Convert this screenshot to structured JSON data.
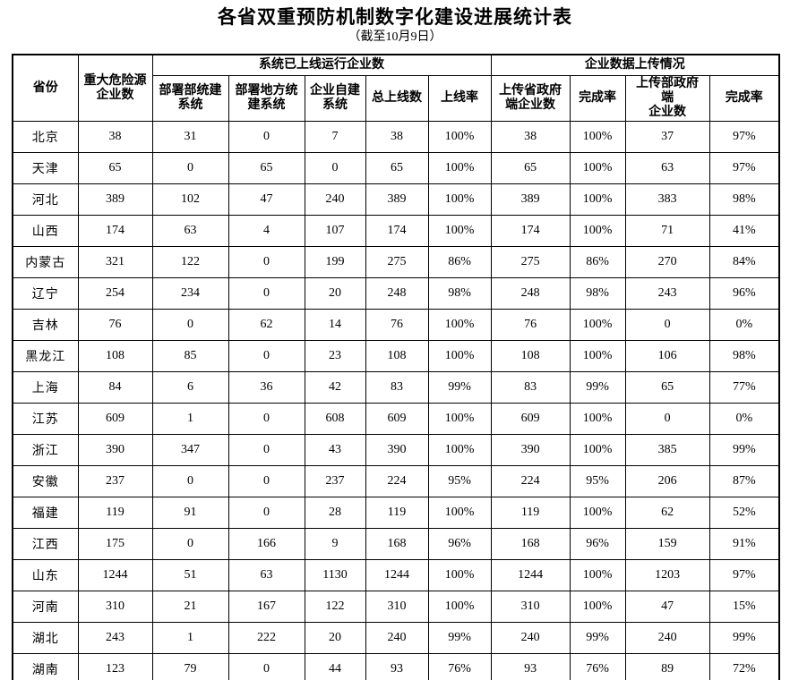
{
  "page": {
    "title": "各省双重预防机制数字化建设进展统计表",
    "subtitle": "（截至10月9日）"
  },
  "table": {
    "header": {
      "province": "省份",
      "major_hazard": "重大危险源\n企业数",
      "group_online": "系统已上线运行企业数",
      "group_upload": "企业数据上传情况",
      "sub": [
        "部署部统建\n系统",
        "部署地方统\n建系统",
        "企业自建\n系统",
        "总上线数",
        "上线率",
        "上传省政府\n端企业数",
        "完成率",
        "上传部政府端\n企业数",
        "完成率"
      ]
    },
    "rows": [
      {
        "province": "北京",
        "values": [
          "38",
          "31",
          "0",
          "7",
          "38",
          "100%",
          "38",
          "100%",
          "37",
          "97%"
        ]
      },
      {
        "province": "天津",
        "values": [
          "65",
          "0",
          "65",
          "0",
          "65",
          "100%",
          "65",
          "100%",
          "63",
          "97%"
        ]
      },
      {
        "province": "河北",
        "values": [
          "389",
          "102",
          "47",
          "240",
          "389",
          "100%",
          "389",
          "100%",
          "383",
          "98%"
        ]
      },
      {
        "province": "山西",
        "values": [
          "174",
          "63",
          "4",
          "107",
          "174",
          "100%",
          "174",
          "100%",
          "71",
          "41%"
        ]
      },
      {
        "province": "内蒙古",
        "values": [
          "321",
          "122",
          "0",
          "199",
          "275",
          "86%",
          "275",
          "86%",
          "270",
          "84%"
        ]
      },
      {
        "province": "辽宁",
        "values": [
          "254",
          "234",
          "0",
          "20",
          "248",
          "98%",
          "248",
          "98%",
          "243",
          "96%"
        ]
      },
      {
        "province": "吉林",
        "values": [
          "76",
          "0",
          "62",
          "14",
          "76",
          "100%",
          "76",
          "100%",
          "0",
          "0%"
        ]
      },
      {
        "province": "黑龙江",
        "values": [
          "108",
          "85",
          "0",
          "23",
          "108",
          "100%",
          "108",
          "100%",
          "106",
          "98%"
        ]
      },
      {
        "province": "上海",
        "values": [
          "84",
          "6",
          "36",
          "42",
          "83",
          "99%",
          "83",
          "99%",
          "65",
          "77%"
        ]
      },
      {
        "province": "江苏",
        "values": [
          "609",
          "1",
          "0",
          "608",
          "609",
          "100%",
          "609",
          "100%",
          "0",
          "0%"
        ]
      },
      {
        "province": "浙江",
        "values": [
          "390",
          "347",
          "0",
          "43",
          "390",
          "100%",
          "390",
          "100%",
          "385",
          "99%"
        ]
      },
      {
        "province": "安徽",
        "values": [
          "237",
          "0",
          "0",
          "237",
          "224",
          "95%",
          "224",
          "95%",
          "206",
          "87%"
        ]
      },
      {
        "province": "福建",
        "values": [
          "119",
          "91",
          "0",
          "28",
          "119",
          "100%",
          "119",
          "100%",
          "62",
          "52%"
        ]
      },
      {
        "province": "江西",
        "values": [
          "175",
          "0",
          "166",
          "9",
          "168",
          "96%",
          "168",
          "96%",
          "159",
          "91%"
        ]
      },
      {
        "province": "山东",
        "values": [
          "1244",
          "51",
          "63",
          "1130",
          "1244",
          "100%",
          "1244",
          "100%",
          "1203",
          "97%"
        ]
      },
      {
        "province": "河南",
        "values": [
          "310",
          "21",
          "167",
          "122",
          "310",
          "100%",
          "310",
          "100%",
          "47",
          "15%"
        ]
      },
      {
        "province": "湖北",
        "values": [
          "243",
          "1",
          "222",
          "20",
          "240",
          "99%",
          "240",
          "99%",
          "240",
          "99%"
        ]
      },
      {
        "province": "湖南",
        "values": [
          "123",
          "79",
          "0",
          "44",
          "93",
          "76%",
          "93",
          "76%",
          "89",
          "72%"
        ]
      }
    ]
  }
}
